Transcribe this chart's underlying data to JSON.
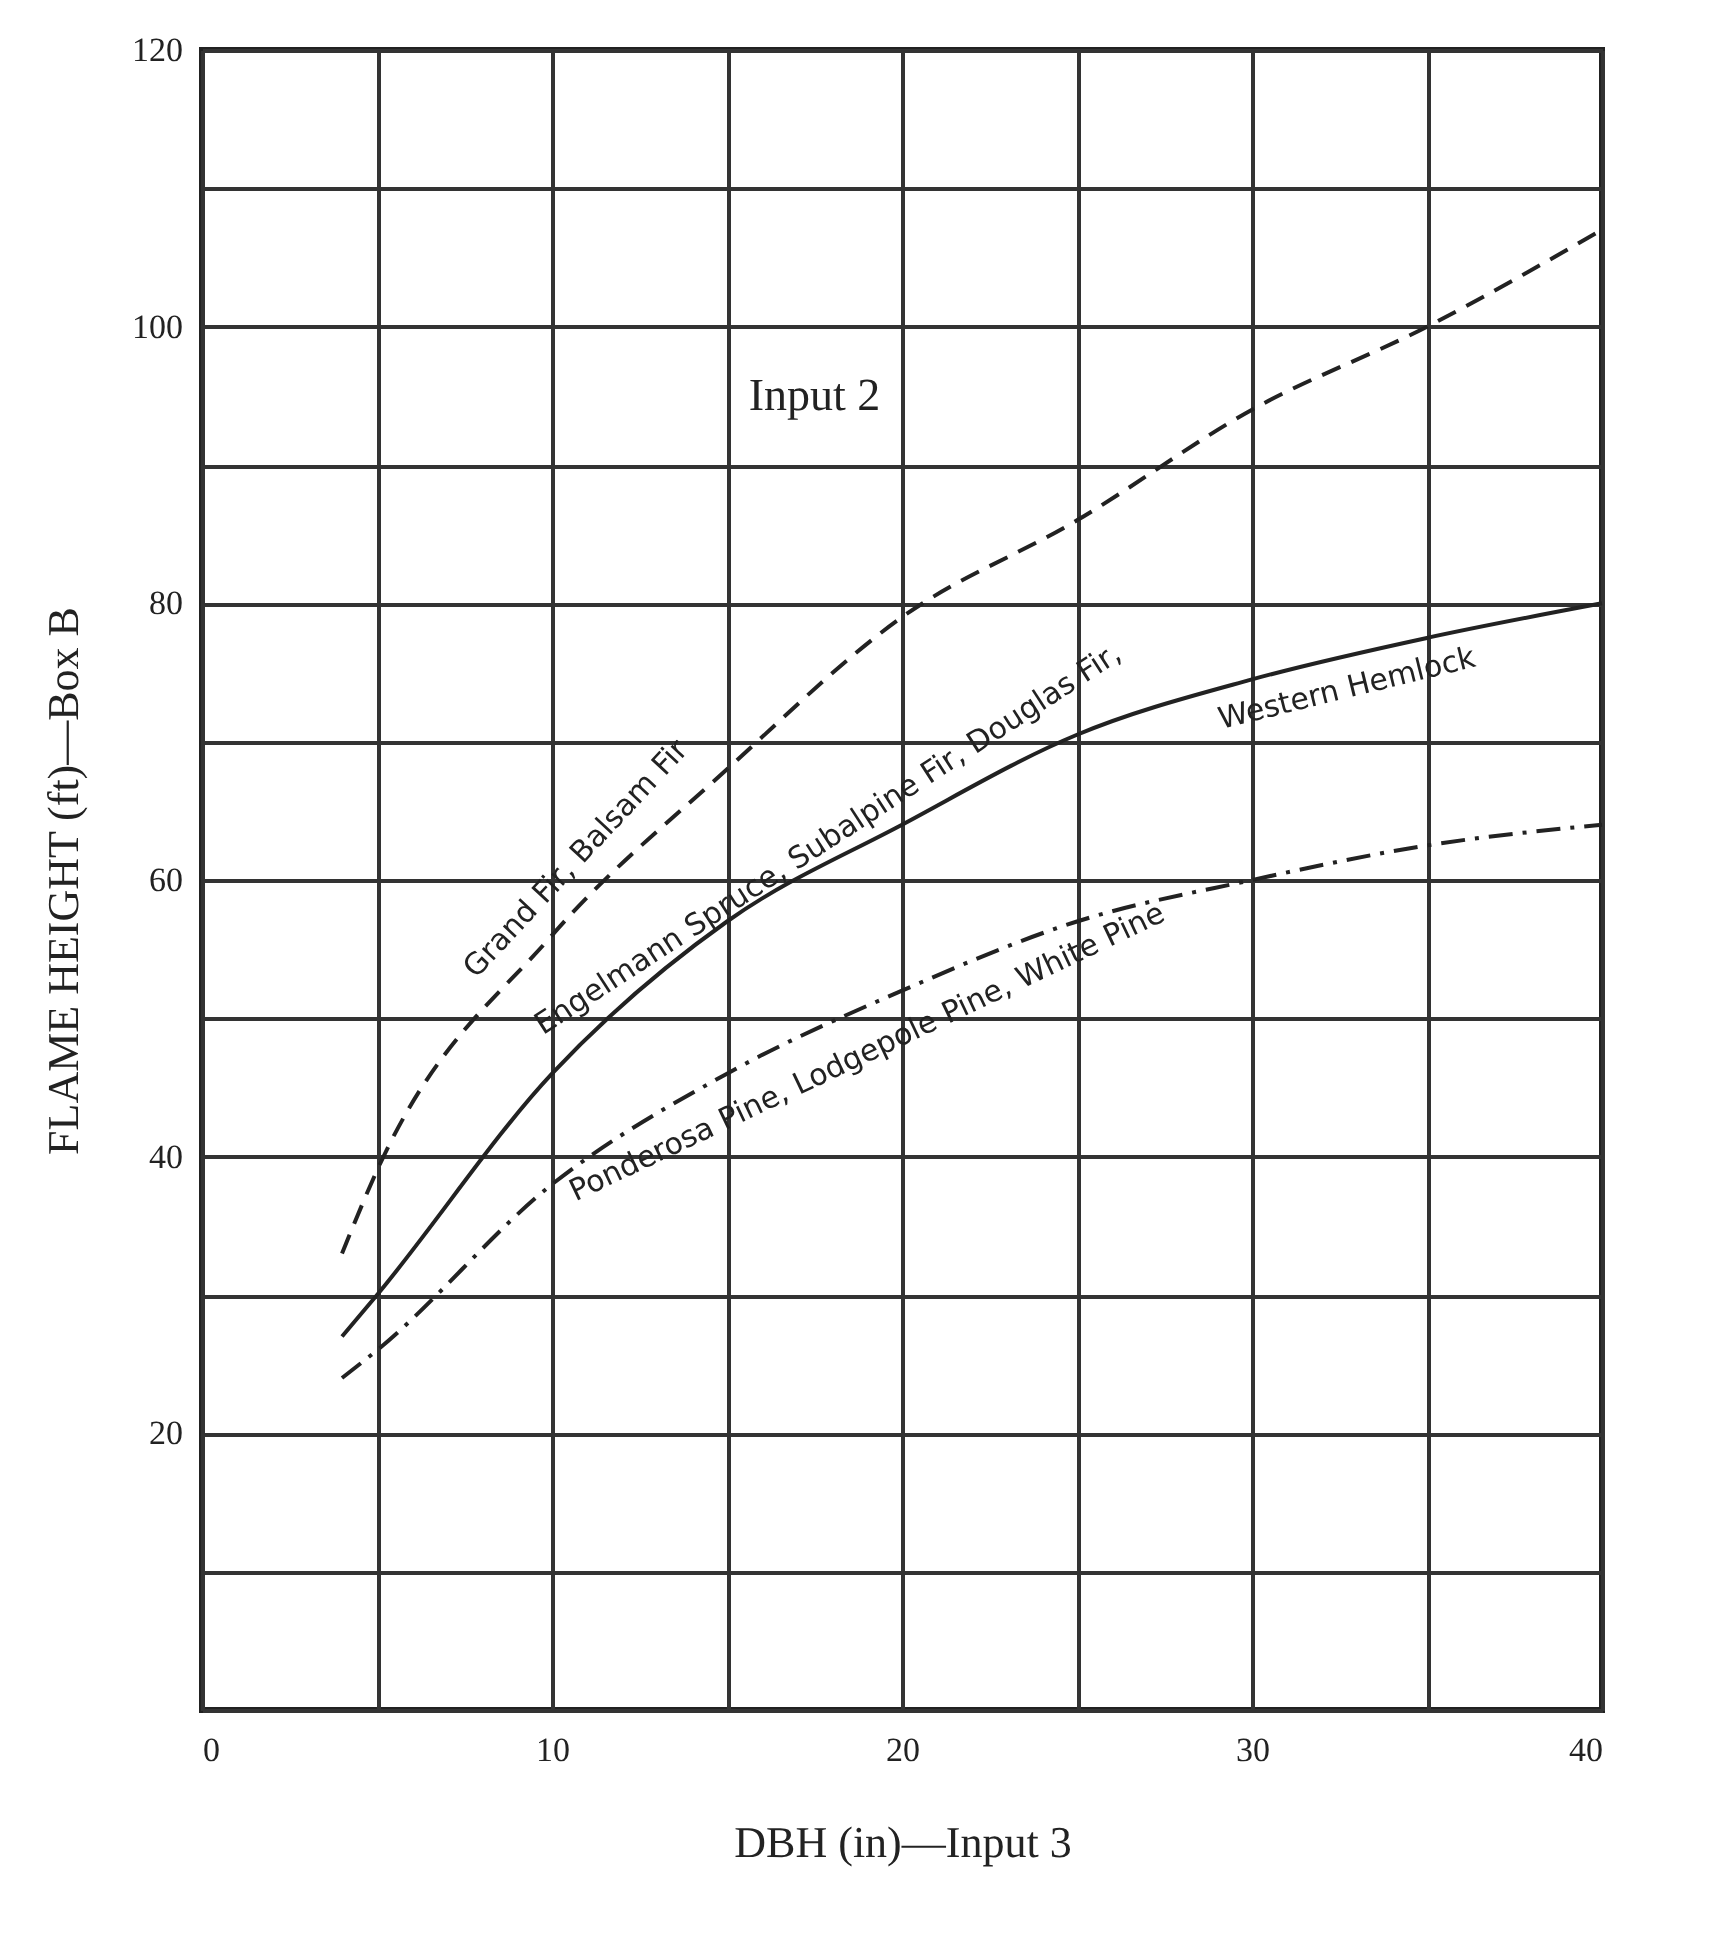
{
  "chart_data": {
    "type": "line",
    "xlabel": "DBH (in)—Input 3",
    "ylabel": "FLAME HEIGHT (ft)—Box B",
    "annotations": [
      "Input 2"
    ],
    "x": [
      4,
      5,
      10,
      15,
      20,
      25,
      30,
      35,
      40
    ],
    "series": [
      {
        "name": "Grand Fir, Balsam Fir",
        "color": "#222222",
        "line_style": "dashed",
        "values": [
          33,
          39,
          56,
          68,
          79,
          86,
          94,
          100,
          107
        ]
      },
      {
        "name": "Engelmann Spruce, Subalpine Fir, Douglas Fir, Western Hemlock",
        "color": "#222222",
        "line_style": "solid",
        "values": [
          27,
          30,
          46,
          57,
          64,
          70.5,
          74.5,
          77.5,
          80
        ]
      },
      {
        "name": "Ponderosa Pine, Lodgepole Pine, White Pine",
        "color": "#222222",
        "line_style": "dashdot",
        "values": [
          24,
          26,
          38,
          46,
          52,
          57,
          60,
          62.5,
          64
        ]
      }
    ],
    "xlim": [
      0,
      40
    ],
    "ylim": [
      0,
      120
    ],
    "xticks": [
      0,
      {
        "value": 5,
        "label": null
      },
      10,
      {
        "value": 15,
        "label": null
      },
      20,
      {
        "value": 25,
        "label": null
      },
      30,
      {
        "value": 35,
        "label": null
      },
      40
    ],
    "yticks": [
      {
        "value": 0,
        "label": null
      },
      {
        "value": 10,
        "label": null
      },
      20,
      {
        "value": 30,
        "label": null
      },
      40,
      {
        "value": 50,
        "label": null
      },
      60,
      {
        "value": 70,
        "label": null
      },
      80,
      {
        "value": 90,
        "label": null
      },
      100,
      {
        "value": 110,
        "label": null
      },
      120
    ],
    "grid": true,
    "legend": false
  }
}
